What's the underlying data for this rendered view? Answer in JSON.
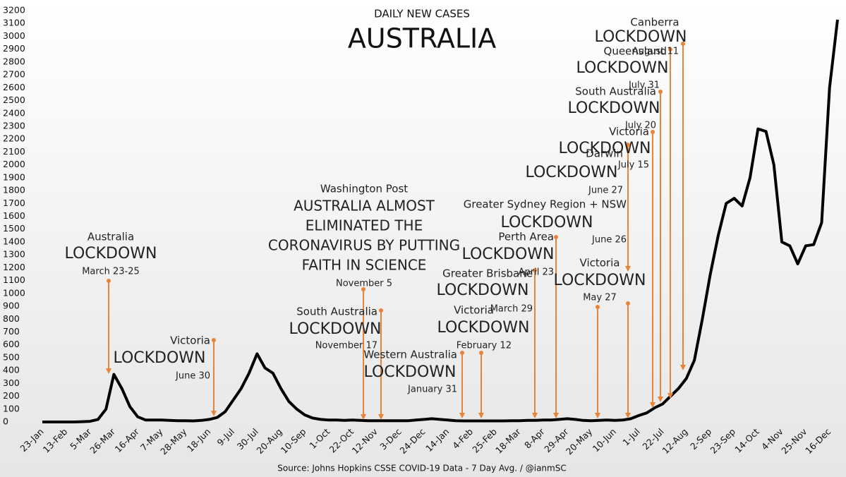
{
  "chart_data": {
    "type": "line",
    "subtitle": "DAILY NEW CASES",
    "title": "AUSTRALIA",
    "source": "Source: Johns Hopkins CSSE COVID-19 Data - 7 Day Avg. / @ianmSC",
    "color": "#000000",
    "categories": [
      "23-Jan",
      null,
      null,
      "13-Feb",
      null,
      null,
      "5-Mar",
      null,
      null,
      "26-Mar",
      null,
      null,
      "16-Apr",
      null,
      null,
      "7-May",
      null,
      null,
      "28-May",
      null,
      null,
      "18-Jun",
      null,
      null,
      "9-Jul",
      null,
      null,
      "30-Jul",
      null,
      null,
      "20-Aug",
      null,
      null,
      "10-Sep",
      null,
      null,
      "1-Oct",
      null,
      null,
      "22-Oct",
      null,
      null,
      "12-Nov",
      null,
      null,
      "3-Dec",
      null,
      null,
      "24-Dec",
      null,
      null,
      "14-Jan",
      null,
      null,
      "4-Feb",
      null,
      null,
      "25-Feb",
      null,
      null,
      "18-Mar",
      null,
      null,
      "8-Apr",
      null,
      null,
      "29-Apr",
      null,
      null,
      "20-May",
      null,
      null,
      "10-Jun",
      null,
      null,
      "1-Jul",
      null,
      null,
      "22-Jul",
      null,
      null,
      "12-Aug",
      null,
      null,
      "2-Sep",
      null,
      null,
      "23-Sep",
      null,
      null,
      "14-Oct",
      null,
      null,
      "4-Nov",
      null,
      null,
      "25-Nov",
      null,
      null,
      "16-Dec",
      null
    ],
    "values": [
      0,
      0,
      0,
      0,
      0,
      2,
      5,
      20,
      100,
      370,
      260,
      120,
      40,
      15,
      15,
      15,
      12,
      10,
      10,
      8,
      12,
      20,
      35,
      80,
      170,
      260,
      380,
      530,
      420,
      380,
      260,
      160,
      100,
      55,
      30,
      20,
      15,
      15,
      12,
      15,
      12,
      10,
      10,
      10,
      10,
      10,
      10,
      15,
      20,
      25,
      20,
      15,
      10,
      8,
      8,
      8,
      8,
      8,
      8,
      10,
      10,
      12,
      12,
      15,
      15,
      20,
      25,
      20,
      12,
      10,
      12,
      15,
      12,
      15,
      25,
      50,
      70,
      110,
      140,
      200,
      260,
      340,
      480,
      800,
      1150,
      1450,
      1700,
      1740,
      1680,
      1900,
      2280,
      2260,
      2000,
      1400,
      1370,
      1230,
      1370,
      1380,
      1550,
      2600,
      3130
    ],
    "ylim": [
      0,
      3200
    ],
    "yticks": [
      0,
      100,
      200,
      300,
      400,
      500,
      600,
      700,
      800,
      900,
      1000,
      1100,
      1200,
      1300,
      1400,
      1500,
      1600,
      1700,
      1800,
      1900,
      2000,
      2100,
      2200,
      2300,
      2400,
      2500,
      2600,
      2700,
      2800,
      2900,
      3000,
      3100,
      3200
    ],
    "grid": false,
    "annotations": [
      {
        "lines": [
          "Australia",
          "LOCKDOWN",
          "March 23-25"
        ]
      },
      {
        "lines": [
          "Victoria",
          "LOCKDOWN",
          "June 30"
        ]
      },
      {
        "lines": [
          "Washington Post",
          "AUSTRALIA ALMOST",
          "ELIMINATED THE",
          "CORONAVIRUS BY PUTTING",
          "FAITH IN SCIENCE",
          "November 5"
        ]
      },
      {
        "lines": [
          "South Australia",
          "LOCKDOWN",
          "November 17"
        ]
      },
      {
        "lines": [
          "Western Australia",
          "LOCKDOWN",
          "January 31"
        ]
      },
      {
        "lines": [
          "Victoria",
          "LOCKDOWN",
          "February 12"
        ]
      },
      {
        "lines": [
          "Greater Brisbane",
          "LOCKDOWN",
          "March 29"
        ]
      },
      {
        "lines": [
          "Perth Area",
          "LOCKDOWN",
          "April 23"
        ]
      },
      {
        "lines": [
          "Victoria",
          "LOCKDOWN",
          "May 27"
        ]
      },
      {
        "lines": [
          "Greater Sydney Region + NSW",
          "LOCKDOWN",
          "June 26"
        ]
      },
      {
        "lines": [
          "Darwin",
          "LOCKDOWN",
          "June 27"
        ]
      },
      {
        "lines": [
          "Victoria",
          "LOCKDOWN",
          "July 15"
        ]
      },
      {
        "lines": [
          "South Australia",
          "LOCKDOWN",
          "July 20"
        ]
      },
      {
        "lines": [
          "Queensland",
          "LOCKDOWN",
          "July 31"
        ]
      },
      {
        "lines": [
          "Canberra",
          "LOCKDOWN",
          "August 11"
        ]
      }
    ]
  }
}
